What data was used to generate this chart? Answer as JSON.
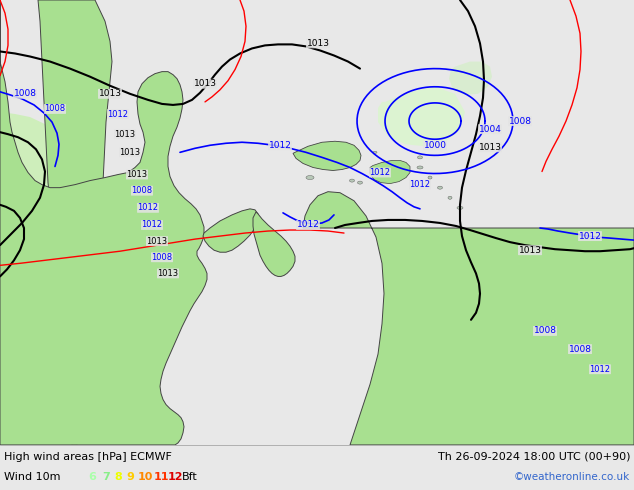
{
  "title_left": "High wind areas [hPa] ECMWF",
  "title_right": "Th 26-09-2024 18:00 UTC (00+90)",
  "subtitle_left": "Wind 10m",
  "copyright": "©weatheronline.co.uk",
  "legend_nums": [
    "6",
    "7",
    "8",
    "9",
    "10",
    "11",
    "12"
  ],
  "legend_colors": [
    "#aaffaa",
    "#88ee88",
    "#eeff00",
    "#ffcc00",
    "#ff8800",
    "#ff3300",
    "#dd0000"
  ],
  "bg_color": "#e4e4e4",
  "land_color": "#a8e090",
  "sea_color": "#e4e4e4",
  "footer_bg": "#e8e8e8",
  "figsize": [
    6.34,
    4.9
  ],
  "dpi": 100
}
